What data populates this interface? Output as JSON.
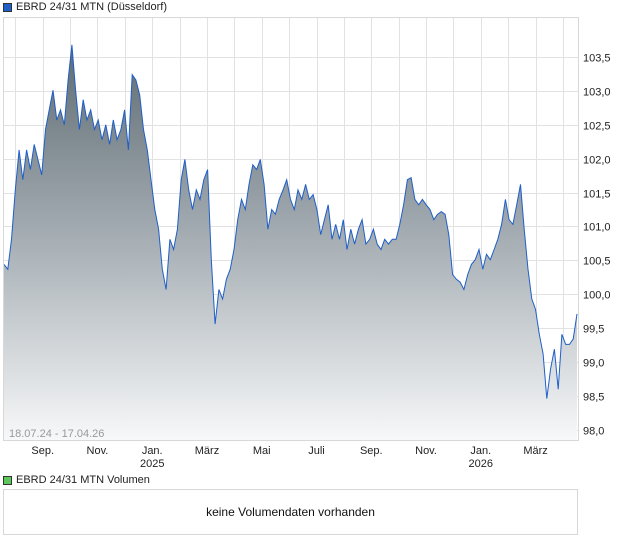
{
  "chart_data": {
    "type": "area",
    "title": "EBRD 24/31 MTN (Düsseldorf)",
    "series_color": "#1f5fc8",
    "date_range": "18.07.24 - 17.04.26",
    "ylim": [
      97.85,
      104.09
    ],
    "y_ticks": [
      "98,0",
      "98,5",
      "99,0",
      "99,5",
      "100,0",
      "100,5",
      "101,0",
      "101,5",
      "102,0",
      "102,5",
      "103,0",
      "103,5"
    ],
    "y_tick_values": [
      98.0,
      98.5,
      99.0,
      99.5,
      100.0,
      100.5,
      101.0,
      101.5,
      102.0,
      102.5,
      103.0,
      103.5
    ],
    "x_ticks": [
      {
        "label": "Sep.",
        "year": "",
        "month_index": 1.45
      },
      {
        "label": "Nov.",
        "year": "",
        "month_index": 3.45
      },
      {
        "label": "Jan.",
        "year": "2025",
        "month_index": 5.45
      },
      {
        "label": "März",
        "year": "",
        "month_index": 7.45
      },
      {
        "label": "Mai",
        "year": "",
        "month_index": 9.45
      },
      {
        "label": "Juli",
        "year": "",
        "month_index": 11.45
      },
      {
        "label": "Sep.",
        "year": "",
        "month_index": 13.45
      },
      {
        "label": "Nov.",
        "year": "",
        "month_index": 15.45
      },
      {
        "label": "Jan.",
        "year": "2026",
        "month_index": 17.45
      },
      {
        "label": "März",
        "year": "",
        "month_index": 19.45
      }
    ],
    "total_months": 21,
    "values": [
      100.44,
      100.37,
      100.81,
      101.54,
      102.13,
      101.69,
      102.13,
      101.84,
      102.21,
      101.99,
      101.76,
      102.43,
      102.72,
      103.01,
      102.57,
      102.72,
      102.5,
      103.16,
      103.68,
      103.01,
      102.43,
      102.87,
      102.57,
      102.72,
      102.43,
      102.57,
      102.28,
      102.5,
      102.21,
      102.57,
      102.28,
      102.43,
      102.72,
      102.13,
      103.24,
      103.16,
      102.94,
      102.43,
      102.13,
      101.69,
      101.25,
      100.96,
      100.37,
      100.07,
      100.81,
      100.66,
      100.96,
      101.69,
      101.99,
      101.54,
      101.25,
      101.54,
      101.4,
      101.69,
      101.84,
      100.51,
      99.56,
      100.07,
      99.93,
      100.22,
      100.37,
      100.66,
      101.1,
      101.4,
      101.25,
      101.62,
      101.91,
      101.84,
      101.99,
      101.62,
      100.96,
      101.25,
      101.18,
      101.4,
      101.54,
      101.69,
      101.4,
      101.25,
      101.54,
      101.4,
      101.62,
      101.4,
      101.47,
      101.25,
      100.88,
      101.1,
      101.32,
      100.81,
      101.03,
      100.81,
      101.1,
      100.66,
      100.96,
      100.74,
      100.96,
      101.1,
      100.74,
      100.81,
      100.96,
      100.74,
      100.66,
      100.81,
      100.74,
      100.81,
      100.81,
      101.03,
      101.32,
      101.69,
      101.72,
      101.4,
      101.32,
      101.4,
      101.32,
      101.25,
      101.1,
      101.18,
      101.22,
      101.18,
      100.88,
      100.29,
      100.22,
      100.18,
      100.07,
      100.29,
      100.44,
      100.51,
      100.66,
      100.37,
      100.59,
      100.51,
      100.66,
      100.81,
      101.03,
      101.4,
      101.1,
      101.03,
      101.32,
      101.62,
      100.96,
      100.37,
      99.93,
      99.78,
      99.41,
      99.12,
      98.46,
      98.9,
      99.19,
      98.6,
      99.41,
      99.26,
      99.26,
      99.34,
      99.71
    ]
  },
  "volume": {
    "legend": "EBRD 24/31 MTN Volumen",
    "legend_color": "#5cc85c",
    "message": "keine Volumendaten vorhanden"
  }
}
